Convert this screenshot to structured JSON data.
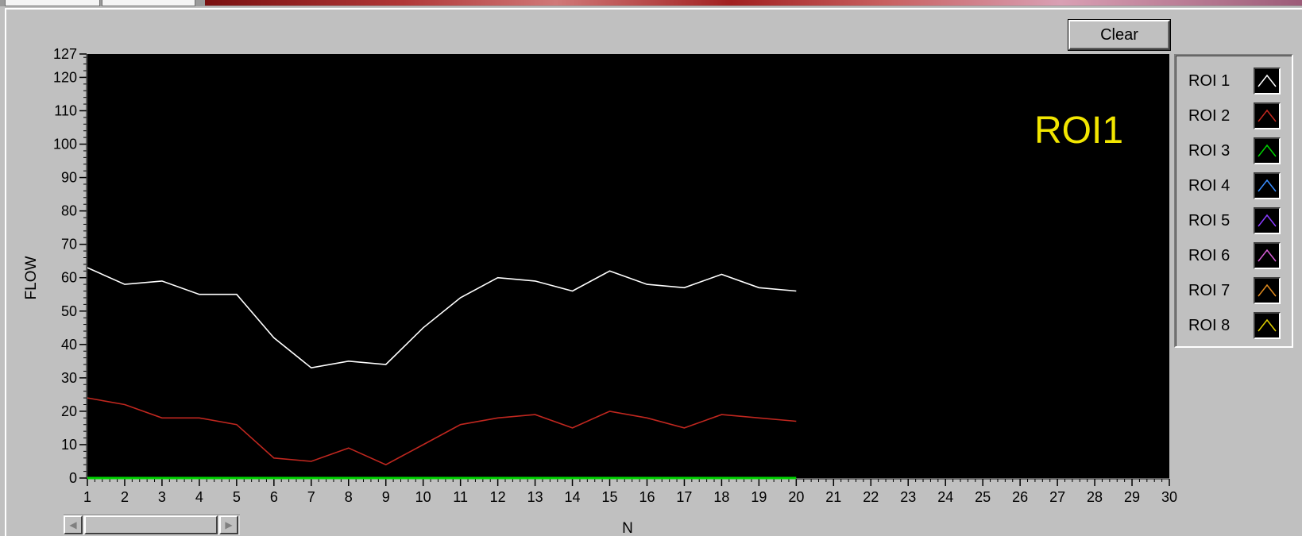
{
  "clear_button": {
    "label": "Clear"
  },
  "scrollbar": {
    "left_arrow": "◀",
    "right_arrow": "▶"
  },
  "legend": {
    "items": [
      {
        "label": "ROI 1",
        "color": "#ffffff"
      },
      {
        "label": "ROI 2",
        "color": "#c0271f"
      },
      {
        "label": "ROI 3",
        "color": "#00d200"
      },
      {
        "label": "ROI 4",
        "color": "#3a8dff"
      },
      {
        "label": "ROI 5",
        "color": "#8a3cff"
      },
      {
        "label": "ROI 6",
        "color": "#d45cd4"
      },
      {
        "label": "ROI 7",
        "color": "#e08a1e"
      },
      {
        "label": "ROI 8",
        "color": "#e0d000"
      }
    ]
  },
  "chart_data": {
    "type": "line",
    "xlabel": "N",
    "ylabel": "FLOW",
    "annotation": "ROI1",
    "annotation_color": "#f2e600",
    "background": "#000000",
    "xlim": [
      1,
      30
    ],
    "ylim": [
      0,
      127
    ],
    "x_ticks": [
      1,
      2,
      3,
      4,
      5,
      6,
      7,
      8,
      9,
      10,
      11,
      12,
      13,
      14,
      15,
      16,
      17,
      18,
      19,
      20,
      21,
      22,
      23,
      24,
      25,
      26,
      27,
      28,
      29,
      30
    ],
    "y_ticks": [
      0,
      10,
      20,
      30,
      40,
      50,
      60,
      70,
      80,
      90,
      100,
      110,
      120,
      127
    ],
    "grid": false,
    "legend_position": "right",
    "x": [
      1,
      2,
      3,
      4,
      5,
      6,
      7,
      8,
      9,
      10,
      11,
      12,
      13,
      14,
      15,
      16,
      17,
      18,
      19,
      20
    ],
    "series": [
      {
        "name": "ROI 1",
        "color": "#ffffff",
        "values": [
          63,
          58,
          59,
          55,
          55,
          42,
          33,
          35,
          34,
          45,
          54,
          60,
          59,
          56,
          62,
          58,
          57,
          61,
          57,
          56
        ]
      },
      {
        "name": "ROI 2",
        "color": "#c0271f",
        "values": [
          24,
          22,
          18,
          18,
          16,
          6,
          5,
          9,
          4,
          10,
          16,
          18,
          19,
          15,
          20,
          18,
          15,
          19,
          18,
          17
        ]
      },
      {
        "name": "ROI 3",
        "color": "#00d200",
        "values": [
          0,
          0,
          0,
          0,
          0,
          0,
          0,
          0,
          0,
          0,
          0,
          0,
          0,
          0,
          0,
          0,
          0,
          0,
          0,
          0
        ]
      }
    ]
  }
}
